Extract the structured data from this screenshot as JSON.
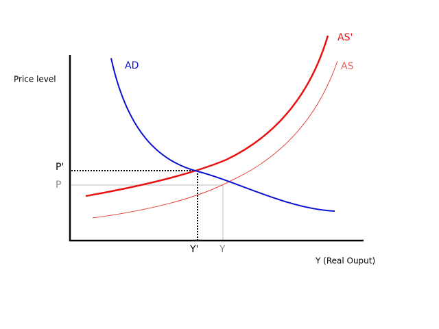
{
  "axes": {
    "y_label": "Price level",
    "x_label": "Y (Real Ouput)"
  },
  "curves": [
    {
      "label": "AD"
    },
    {
      "label": "AS'"
    },
    {
      "label": "AS"
    }
  ],
  "equilibria": [
    {
      "price": "P'",
      "output": "Y'"
    },
    {
      "price": "P",
      "output": "Y"
    }
  ]
}
